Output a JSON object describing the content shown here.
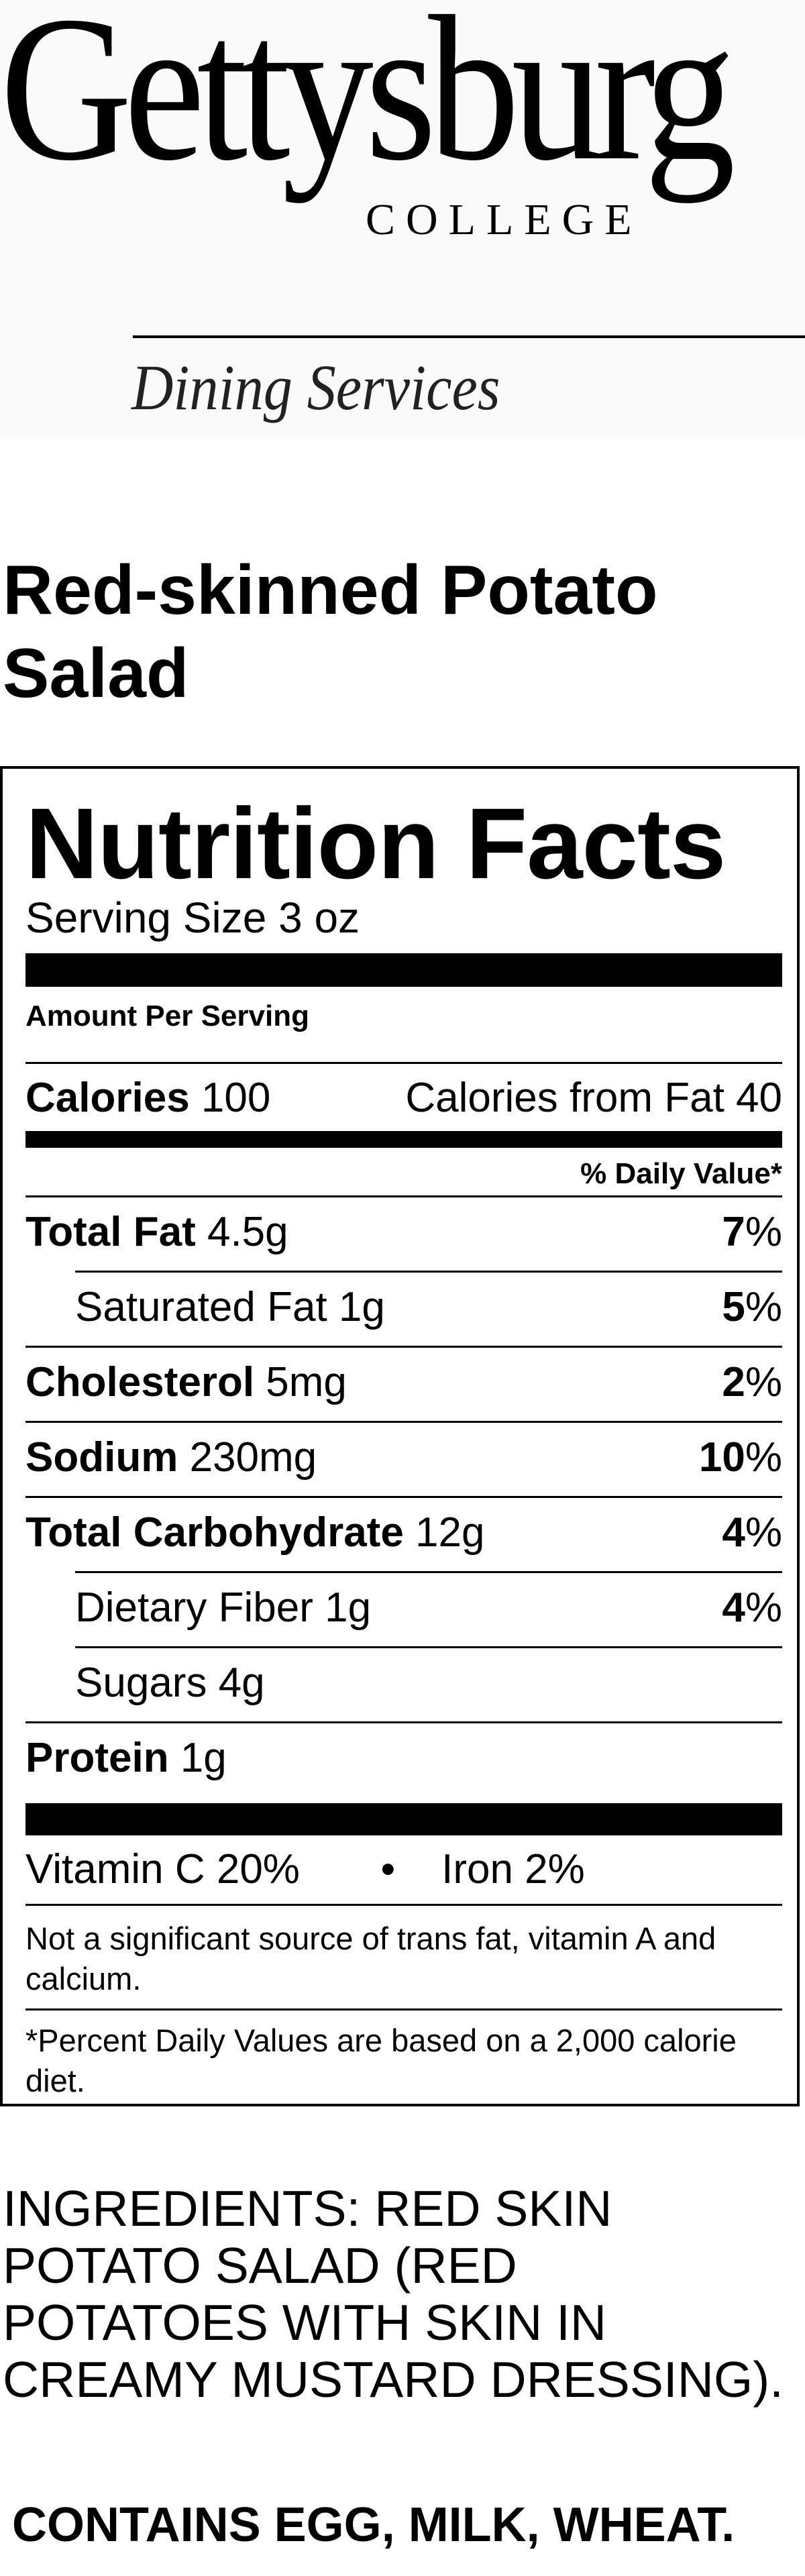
{
  "header": {
    "logo_main": "Gettysburg",
    "logo_sub": "COLLEGE",
    "department": "Dining Services"
  },
  "item_title": "Red-skinned Potato Salad",
  "nutrition": {
    "heading": "Nutrition Facts",
    "serving_size": "Serving Size 3 oz",
    "amount_per_serving": "Amount Per Serving",
    "calories": {
      "label": "Calories",
      "value": "100"
    },
    "calories_from_fat": "Calories from Fat 40",
    "daily_value_header": "% Daily Value*",
    "rows": [
      {
        "label": "Total Fat",
        "amount": "4.5g",
        "dv": "7",
        "bold": true,
        "indent": false
      },
      {
        "label": "Saturated Fat",
        "amount": "1g",
        "dv": "5",
        "bold": false,
        "indent": true
      },
      {
        "label": "Cholesterol",
        "amount": "5mg",
        "dv": "2",
        "bold": true,
        "indent": false
      },
      {
        "label": "Sodium",
        "amount": "230mg",
        "dv": "10",
        "bold": true,
        "indent": false
      },
      {
        "label": "Total Carbohydrate",
        "amount": "12g",
        "dv": "4",
        "bold": true,
        "indent": false
      },
      {
        "label": "Dietary Fiber",
        "amount": "1g",
        "dv": "4",
        "bold": false,
        "indent": true
      },
      {
        "label": "Sugars",
        "amount": "4g",
        "dv": "",
        "bold": false,
        "indent": true
      },
      {
        "label": "Protein",
        "amount": "1g",
        "dv": "",
        "bold": true,
        "indent": false
      }
    ],
    "vitamins": "Vitamin C 20%       •    Iron 2%",
    "note_trans": "Not a significant source of trans fat, vitamin A and calcium.",
    "note_daily": "*Percent Daily Values are based on a 2,000 calorie diet."
  },
  "ingredients": "INGREDIENTS: RED SKIN POTATO SALAD (RED POTATOES WITH SKIN IN CREAMY MUSTARD DRESSING).",
  "contains": "CONTAINS EGG, MILK, WHEAT."
}
